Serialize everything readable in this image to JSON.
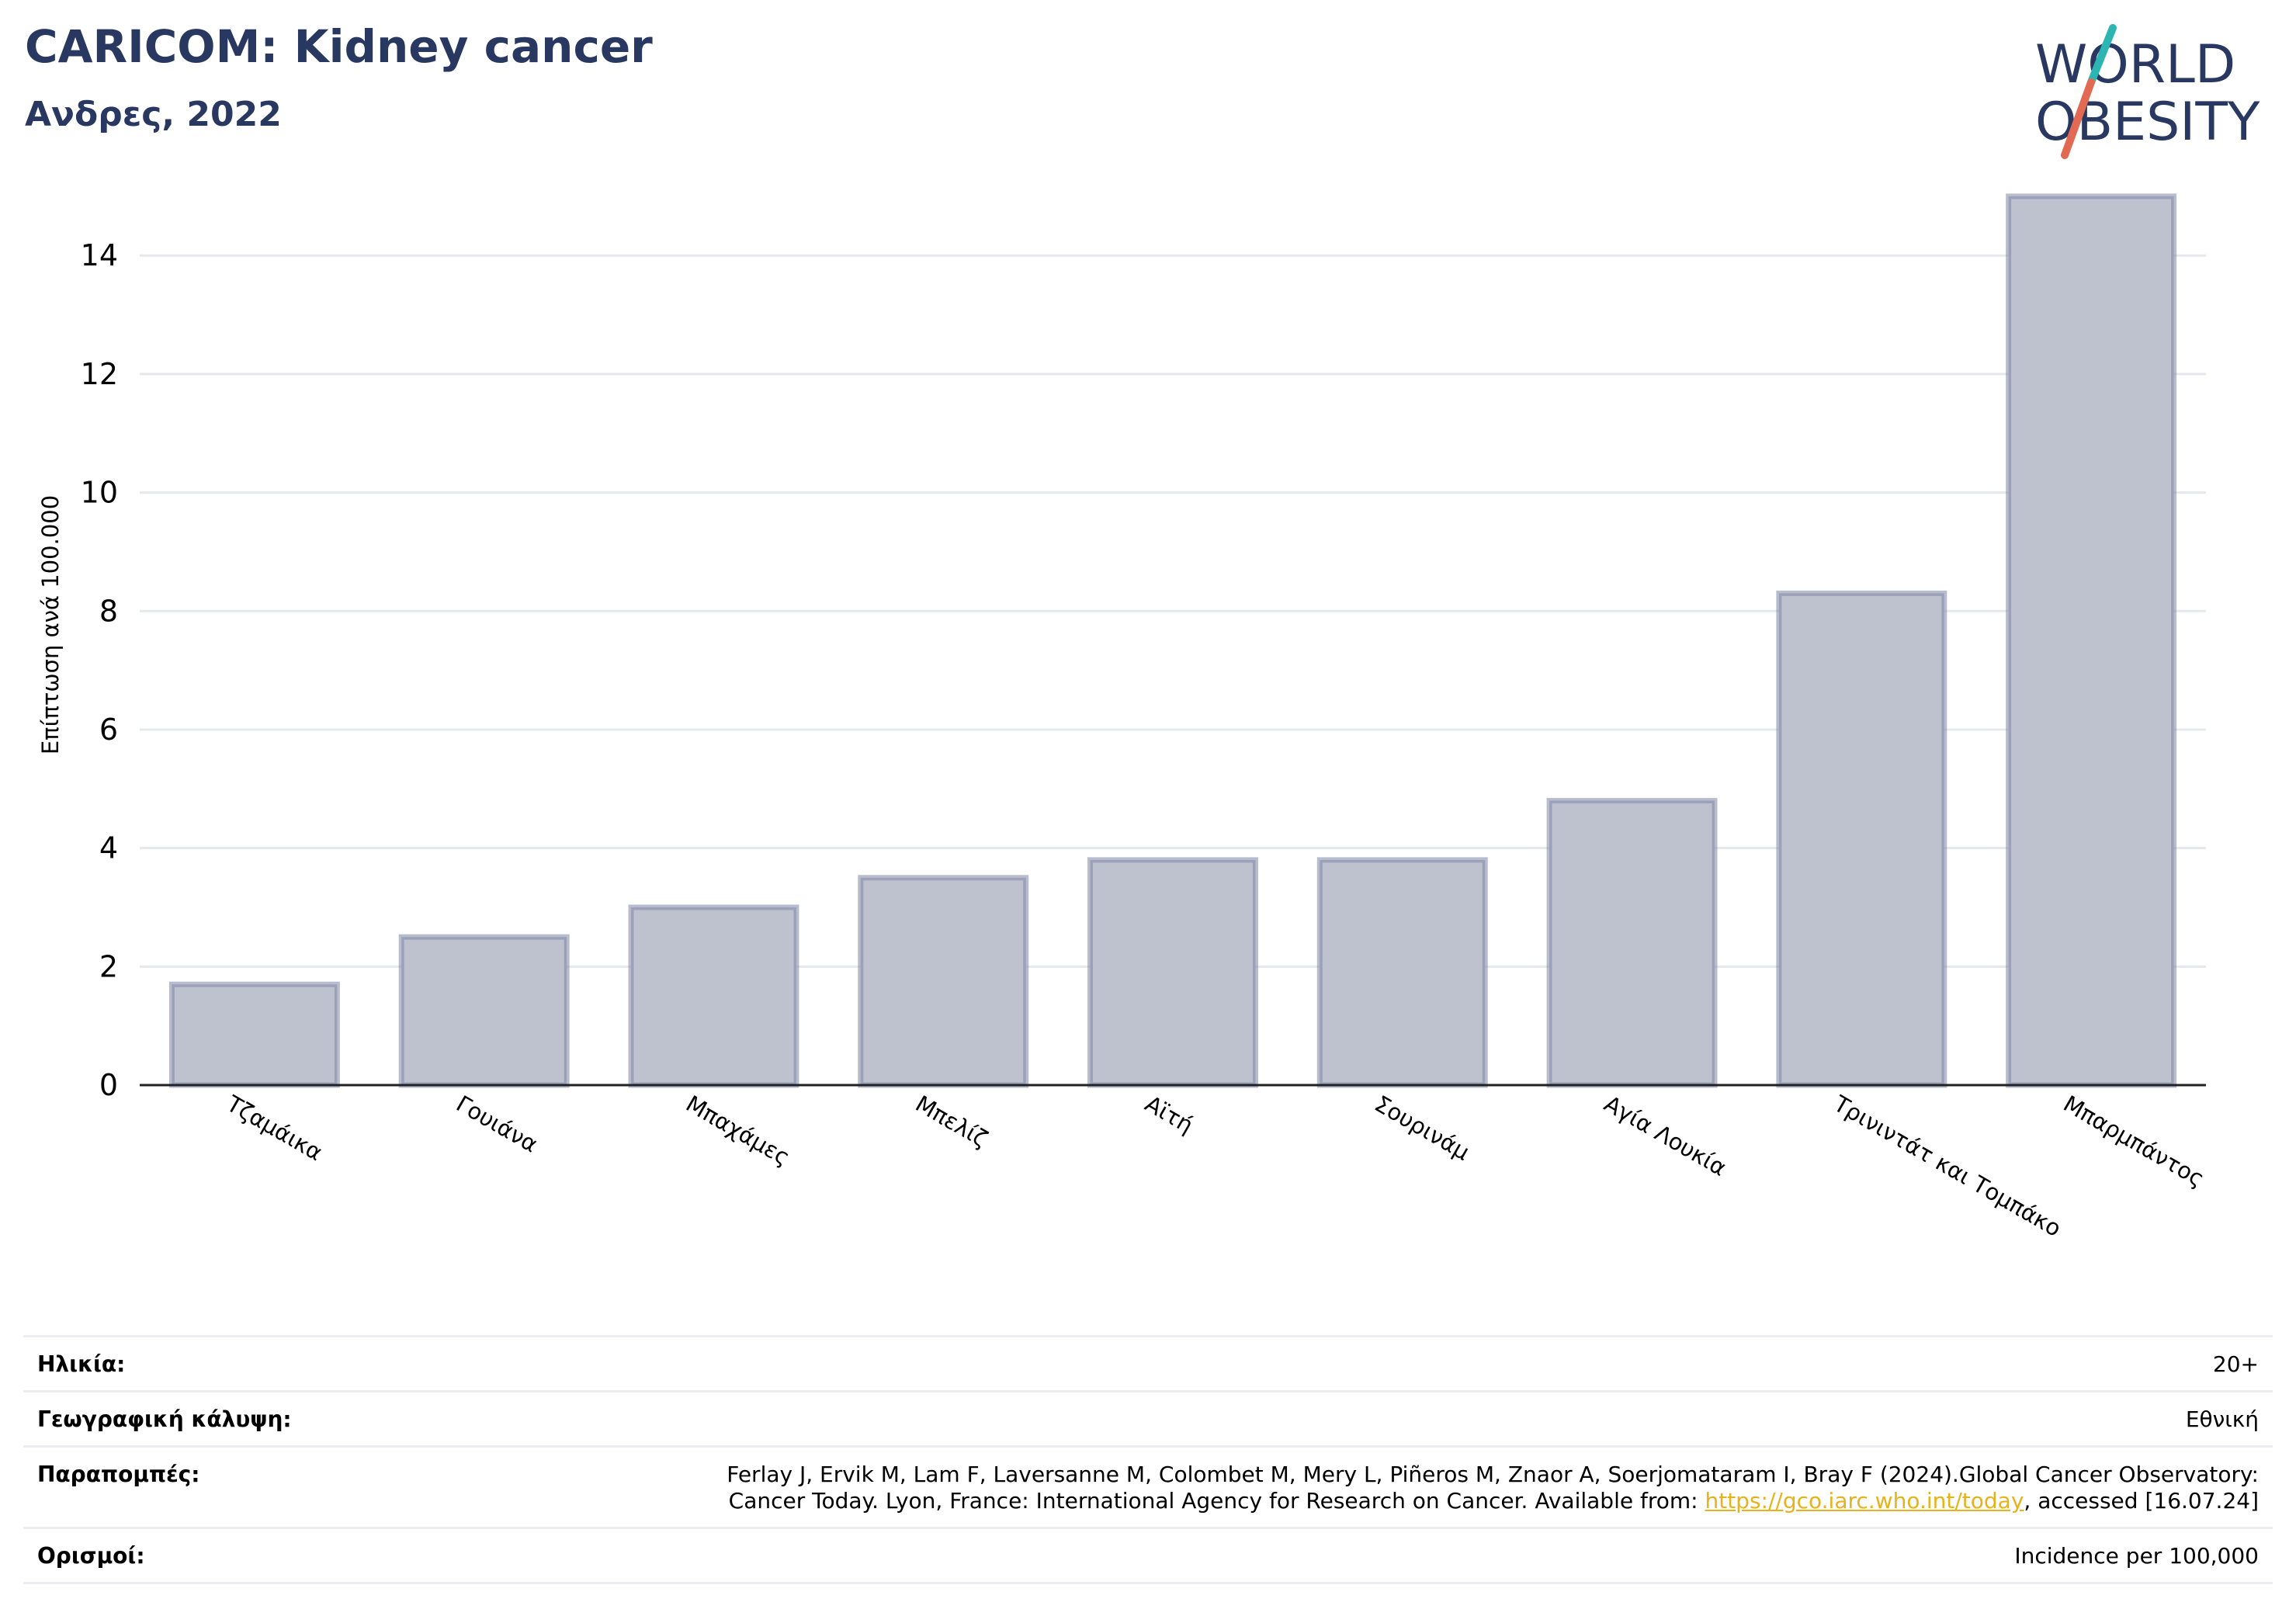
{
  "header": {
    "title": "CARICOM: Kidney cancer",
    "subtitle": "Ανδρες, 2022"
  },
  "logo": {
    "line1": "WORLD",
    "line2": "OBESITY",
    "colors": {
      "text": "#283861",
      "slash_top": "#2cb5b2",
      "slash_bottom": "#e26a53"
    }
  },
  "chart_data": {
    "type": "bar",
    "title": "CARICOM: Kidney cancer",
    "subtitle": "Ανδρες, 2022",
    "ylabel": "Επίπτωση ανά 100.000",
    "xlabel": "",
    "categories": [
      "Τζαμάικα",
      "Γουιάνα",
      "Μπαχάμες",
      "Μπελίζ",
      "Αϊτή",
      "Σουρινάμ",
      "Αγία Λουκία",
      "Τρινιντάτ και Τομπάκο",
      "Μπαρμπάντος"
    ],
    "values": [
      1.7,
      2.5,
      3.0,
      3.5,
      3.8,
      3.8,
      4.8,
      8.3,
      15.0
    ],
    "ylim": [
      0,
      15.3
    ],
    "yticks": [
      0,
      2,
      4,
      6,
      8,
      10,
      12,
      14
    ],
    "grid": true,
    "colors": {
      "bar_fill": "#bec2cf",
      "bar_stroke": "#7e87a6",
      "grid": "#e6e8ee",
      "axis": "#222222"
    }
  },
  "meta": {
    "rows": [
      {
        "label": "Ηλικία:",
        "value": "20+"
      },
      {
        "label": "Γεωγραφική κάλυψη:",
        "value": "Εθνική"
      },
      {
        "label": "Παραπομπές:",
        "line1": "Ferlay J, Ervik M, Lam F, Laversanne M, Colombet M, Mery L, Piñeros M, Znaor A, Soerjomataram I, Bray F (2024).Global Cancer Observatory:",
        "line2_prefix": "Cancer Today. Lyon, France: International Agency for Research on Cancer. Available from: ",
        "link": "https://gco.iarc.who.int/today",
        "line2_suffix": ", accessed [16.07.24]"
      },
      {
        "label": "Ορισμοί:",
        "value": "Incidence per 100,000"
      }
    ]
  }
}
